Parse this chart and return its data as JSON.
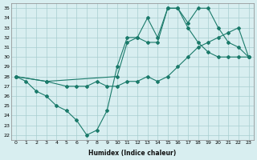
{
  "xlabel": "Humidex (Indice chaleur)",
  "ylabel": "",
  "xlim": [
    -0.5,
    23.5
  ],
  "ylim": [
    21.5,
    35.5
  ],
  "xticks": [
    0,
    1,
    2,
    3,
    4,
    5,
    6,
    7,
    8,
    9,
    10,
    11,
    12,
    13,
    14,
    15,
    16,
    17,
    18,
    19,
    20,
    21,
    22,
    23
  ],
  "yticks": [
    22,
    23,
    24,
    25,
    26,
    27,
    28,
    29,
    30,
    31,
    32,
    33,
    34,
    35
  ],
  "line_color": "#1a7a6a",
  "background_color": "#d8eef0",
  "line1_x": [
    0,
    1,
    2,
    3,
    4,
    5,
    6,
    7,
    8,
    9,
    10,
    11,
    12,
    13,
    14,
    15,
    16,
    17,
    18,
    19,
    20,
    21,
    22,
    23
  ],
  "line1_y": [
    28,
    27.5,
    26.5,
    26,
    25,
    24.5,
    23.5,
    22,
    22.5,
    24.5,
    29,
    32,
    32,
    31.5,
    31.5,
    35,
    35,
    33,
    31.5,
    30.5,
    30,
    30,
    30,
    30
  ],
  "line2_x": [
    0,
    3,
    10,
    11,
    12,
    13,
    14,
    15,
    16,
    17,
    18,
    19,
    20,
    21,
    22,
    23
  ],
  "line2_y": [
    28,
    27.5,
    28,
    31.5,
    32,
    34,
    32,
    35,
    35,
    33.5,
    35,
    35,
    33,
    31.5,
    31,
    30
  ],
  "line3_x": [
    0,
    3,
    5,
    6,
    7,
    8,
    9,
    10,
    11,
    12,
    13,
    14,
    15,
    16,
    17,
    18,
    19,
    20,
    21,
    22,
    23
  ],
  "line3_y": [
    28,
    27.5,
    27,
    27,
    27,
    27.5,
    27,
    27,
    27.5,
    27.5,
    28,
    27.5,
    28,
    29,
    30,
    31,
    31.5,
    32,
    32.5,
    33,
    30
  ]
}
